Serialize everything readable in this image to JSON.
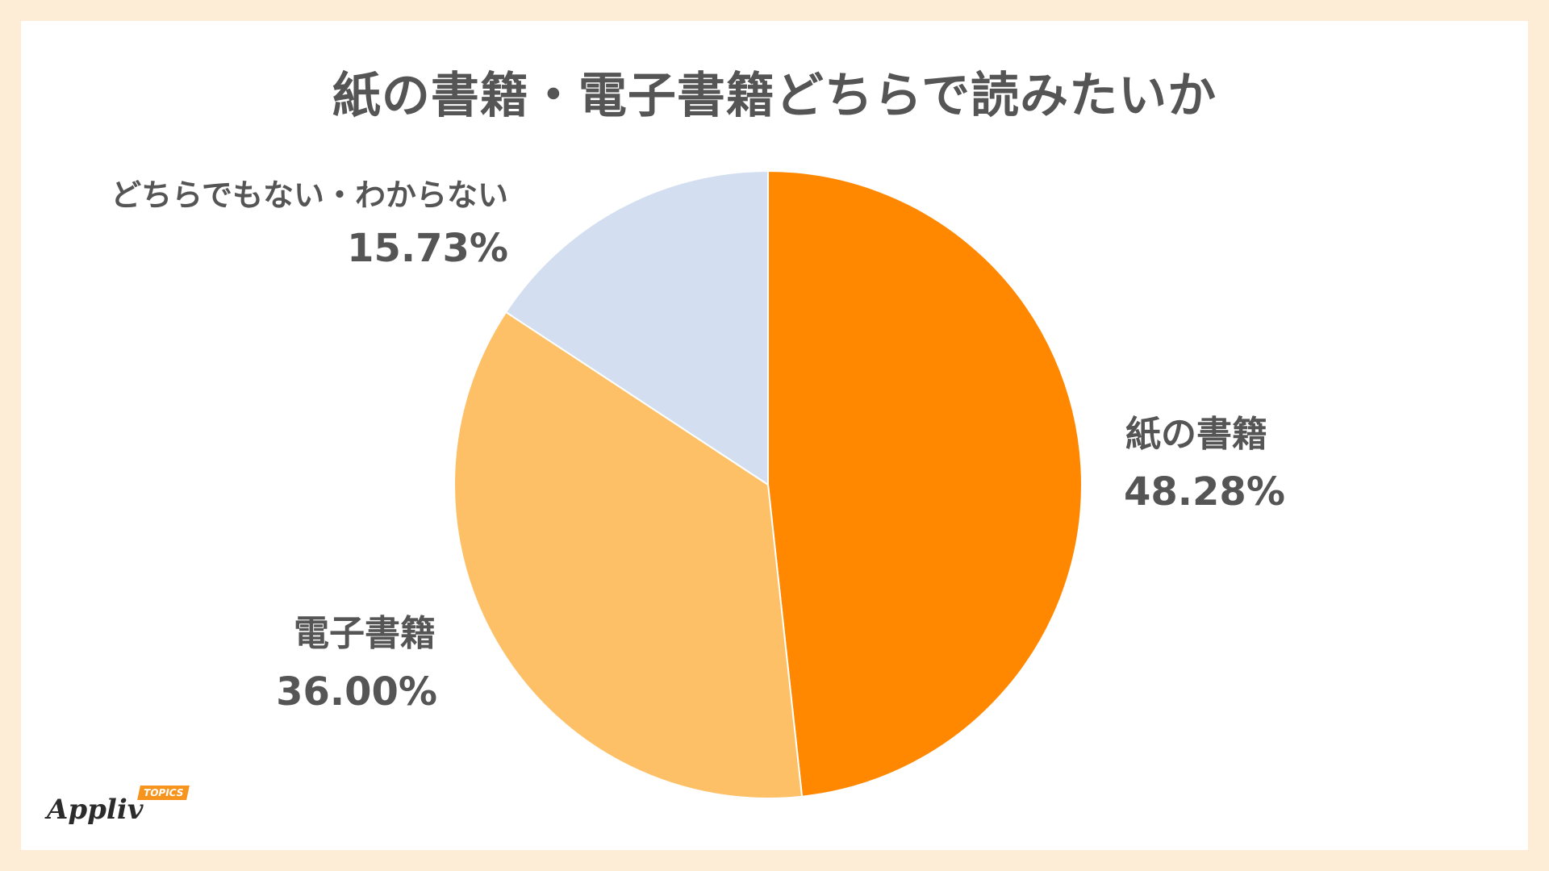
{
  "chart_data": {
    "type": "pie",
    "title": "紙の書籍・電子書籍どちらで読みたいか",
    "series": [
      {
        "label": "紙の書籍",
        "value": 48.28,
        "display": "48.28%",
        "color": "#ff8800"
      },
      {
        "label": "電子書籍",
        "value": 36.0,
        "display": "36.00%",
        "color": "#fdc067"
      },
      {
        "label": "どちらでもない・わからない",
        "value": 15.73,
        "display": "15.73%",
        "color": "#d3dff0"
      }
    ],
    "start": "12 o'clock",
    "direction": "clockwise"
  },
  "logo": {
    "main": "Appliv",
    "badge": "TOPICS"
  }
}
